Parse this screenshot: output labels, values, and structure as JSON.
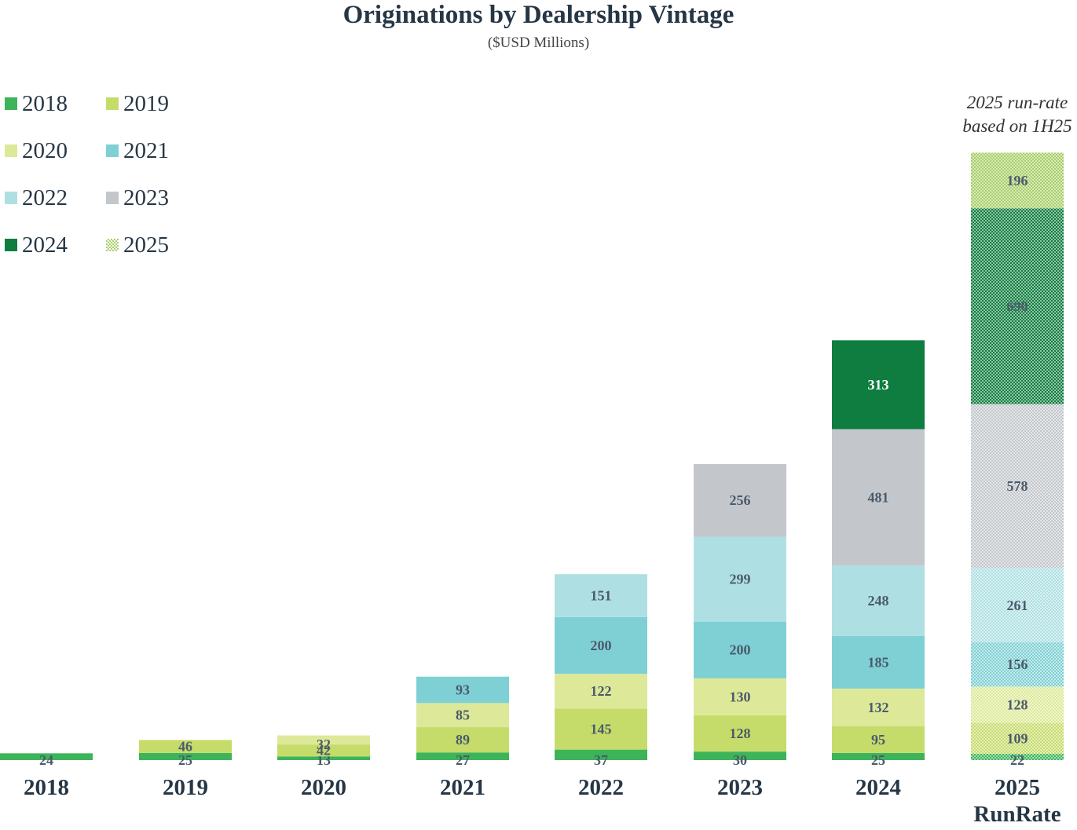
{
  "chart_data": {
    "type": "bar",
    "stacked": true,
    "title": "Originations by Dealership Vintage",
    "subtitle": "($USD Millions)",
    "annotation_lines": [
      "2025 run-rate",
      "based on 1H25"
    ],
    "categories": [
      "2018",
      "2019",
      "2020",
      "2021",
      "2022",
      "2023",
      "2024",
      "2025"
    ],
    "category_sublabels": [
      "",
      "",
      "",
      "",
      "",
      "",
      "",
      "RunRate"
    ],
    "series": [
      {
        "name": "2018",
        "color": "#3db45a",
        "values": [
          24,
          25,
          13,
          27,
          37,
          30,
          25,
          22
        ]
      },
      {
        "name": "2019",
        "color": "#c6dc6a",
        "values": [
          null,
          46,
          42,
          89,
          145,
          128,
          95,
          109
        ]
      },
      {
        "name": "2020",
        "color": "#dde998",
        "values": [
          null,
          null,
          32,
          85,
          122,
          130,
          132,
          128
        ]
      },
      {
        "name": "2021",
        "color": "#7fd0d4",
        "values": [
          null,
          null,
          null,
          93,
          200,
          200,
          185,
          156
        ]
      },
      {
        "name": "2022",
        "color": "#aee0e3",
        "values": [
          null,
          null,
          null,
          null,
          151,
          299,
          248,
          261
        ]
      },
      {
        "name": "2023",
        "color": "#c3c7cc",
        "values": [
          null,
          null,
          null,
          null,
          null,
          256,
          481,
          578
        ]
      },
      {
        "name": "2024",
        "color": "#0e7d3f",
        "values": [
          null,
          null,
          null,
          null,
          null,
          null,
          313,
          690
        ]
      },
      {
        "name": "2025",
        "color": "#a9cf6a",
        "values": [
          null,
          null,
          null,
          null,
          null,
          null,
          null,
          196
        ]
      }
    ],
    "hatched_category": "2025",
    "ylim": [
      0,
      2100
    ],
    "legend_position": "top-left",
    "grid": false
  }
}
